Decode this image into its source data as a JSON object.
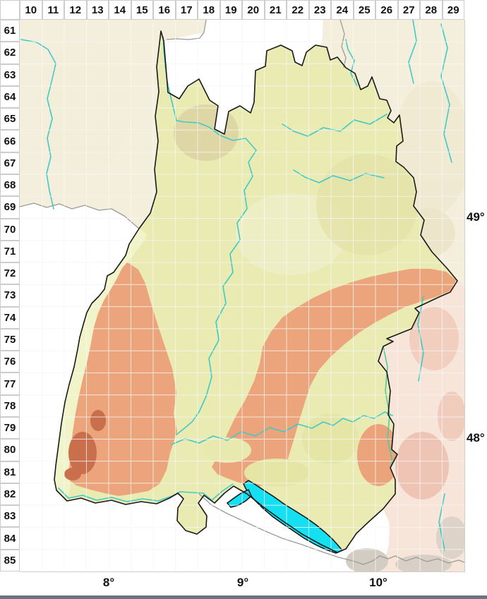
{
  "header": {
    "columns": [
      "10",
      "11",
      "12",
      "13",
      "14",
      "15",
      "16",
      "17",
      "18",
      "19",
      "20",
      "21",
      "22",
      "23",
      "24",
      "25",
      "26",
      "27",
      "28",
      "29"
    ]
  },
  "left_axis": {
    "rows": [
      "61",
      "62",
      "63",
      "64",
      "65",
      "66",
      "67",
      "68",
      "69",
      "70",
      "71",
      "72",
      "73",
      "74",
      "75",
      "76",
      "77",
      "78",
      "79",
      "80",
      "81",
      "82",
      "83",
      "84",
      "85"
    ]
  },
  "right_axis": {
    "labels": [
      "49°",
      "48°"
    ]
  },
  "bottom_axis": {
    "labels": [
      "8°",
      "9°",
      "10°"
    ]
  },
  "colors": {
    "outside_cream": "#f4eedd",
    "outside_white": "#ffffff",
    "neighbor_pink": "#f7e5da",
    "lowland_green": "#e9ebb2",
    "valley_light": "#f1f4c8",
    "upland_salmon": "#eca47d",
    "high_redbrown": "#c96f4c",
    "pale_center": "#edeec4",
    "tan_hills": "#ddd2a2",
    "water_lake": "#15e0f2",
    "river_teal": "#3fcac6",
    "state_border": "#1a1a1a",
    "neighbor_border": "#9b9b97",
    "grid_line": "#ffffff",
    "cell_border": "#cccccc",
    "frame_bar": "#6b7480",
    "label_text": "#111111"
  }
}
